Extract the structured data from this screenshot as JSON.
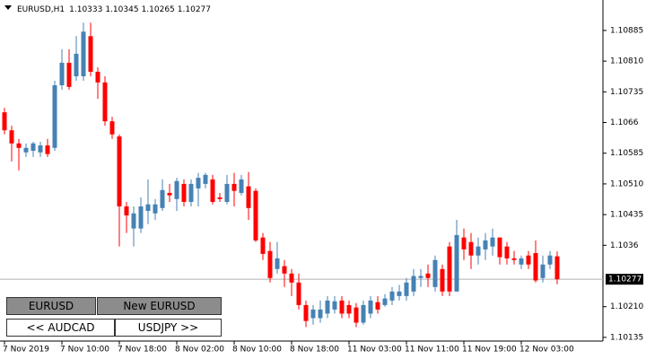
{
  "chart_data": {
    "type": "candlestick",
    "title": "EURUSD,H1",
    "categories": [
      "7 Nov 2019",
      null,
      null,
      null,
      null,
      null,
      null,
      null,
      "7 Nov 10:00",
      null,
      null,
      null,
      null,
      null,
      null,
      null,
      "7 Nov 18:00",
      null,
      null,
      null,
      null,
      null,
      null,
      null,
      "8 Nov 02:00",
      null,
      null,
      null,
      null,
      null,
      null,
      null,
      "8 Nov 10:00",
      null,
      null,
      null,
      null,
      null,
      null,
      null,
      "8 Nov 18:00",
      null,
      null,
      null,
      null,
      null,
      null,
      null,
      "11 Nov 03:00",
      null,
      null,
      null,
      null,
      null,
      null,
      null,
      "11 Nov 11:00",
      null,
      null,
      null,
      null,
      null,
      null,
      null,
      "11 Nov 19:00",
      null,
      null,
      null,
      null,
      null,
      null,
      null,
      "12 Nov 03:00",
      null,
      null,
      null,
      null,
      null
    ],
    "open": [
      1.10685,
      1.10641,
      1.10609,
      1.10587,
      1.10591,
      1.10587,
      1.10604,
      1.10598,
      1.10751,
      1.10806,
      1.10773,
      1.10773,
      1.10871,
      1.10784,
      1.10758,
      1.10663,
      1.10626,
      1.10455,
      1.10401,
      1.10401,
      1.10444,
      1.10438,
      1.10451,
      1.10488,
      1.10473,
      1.1051,
      1.10466,
      1.10499,
      1.1051,
      1.10521,
      1.10477,
      1.10466,
      1.1051,
      1.10488,
      1.10504,
      1.10493,
      1.10379,
      1.10346,
      1.10302,
      1.10309,
      1.10291,
      1.10269,
      1.10214,
      1.10182,
      1.10182,
      1.10193,
      1.10203,
      1.10225,
      1.10214,
      1.10208,
      1.10171,
      1.10193,
      1.10221,
      1.10214,
      1.10225,
      1.10236,
      1.10236,
      1.10247,
      1.1028,
      1.10291,
      1.10258,
      1.10302,
      1.10357,
      1.10247,
      1.10379,
      1.10368,
      1.10335,
      1.1035,
      1.10357,
      1.10379,
      1.10357,
      1.10328,
      1.10313,
      1.10335,
      1.10341,
      1.1028,
      1.10313,
      1.10333
    ],
    "high": [
      1.10696,
      1.10652,
      1.1062,
      1.10609,
      1.10613,
      1.10613,
      1.1062,
      1.10762,
      1.10839,
      1.10839,
      1.10871,
      1.10904,
      1.10904,
      1.10795,
      1.10773,
      1.10674,
      1.10631,
      1.10466,
      1.10455,
      1.10477,
      1.10521,
      1.10473,
      1.10521,
      1.1051,
      1.10525,
      1.10521,
      1.10521,
      1.10537,
      1.10537,
      1.10532,
      1.10488,
      1.10532,
      1.10537,
      1.10532,
      1.10539,
      1.10499,
      1.1039,
      1.10368,
      1.10368,
      1.10324,
      1.10302,
      1.10291,
      1.10225,
      1.10214,
      1.10225,
      1.10236,
      1.10236,
      1.10236,
      1.10225,
      1.10219,
      1.10225,
      1.10236,
      1.10236,
      1.10241,
      1.10258,
      1.10263,
      1.1028,
      1.10302,
      1.10302,
      1.10313,
      1.10335,
      1.10313,
      1.10368,
      1.10422,
      1.10401,
      1.1039,
      1.10379,
      1.1039,
      1.10401,
      1.10379,
      1.10368,
      1.10346,
      1.10335,
      1.10346,
      1.10372,
      1.10335,
      1.10346,
      1.10345
    ],
    "low": [
      1.10631,
      1.10565,
      1.10543,
      1.10576,
      1.10576,
      1.10576,
      1.10576,
      1.10591,
      1.1074,
      1.1074,
      1.10762,
      1.10762,
      1.10773,
      1.10718,
      1.10652,
      1.1062,
      1.10357,
      1.1039,
      1.10357,
      1.1039,
      1.10412,
      1.10422,
      1.10444,
      1.10466,
      1.10444,
      1.10455,
      1.10455,
      1.10455,
      1.10499,
      1.1046,
      1.10466,
      1.1046,
      1.10455,
      1.10482,
      1.10422,
      1.10368,
      1.10324,
      1.10269,
      1.10291,
      1.10258,
      1.10236,
      1.10203,
      1.1016,
      1.10166,
      1.10171,
      1.10182,
      1.10193,
      1.10182,
      1.10182,
      1.1016,
      1.10166,
      1.10182,
      1.10193,
      1.1021,
      1.10214,
      1.10225,
      1.10225,
      1.10236,
      1.10258,
      1.10258,
      1.10247,
      1.10236,
      1.10236,
      1.10247,
      1.10324,
      1.10302,
      1.10313,
      1.10324,
      1.10335,
      1.10313,
      1.10313,
      1.10313,
      1.10302,
      1.10302,
      1.10269,
      1.10269,
      1.10302,
      1.10265
    ],
    "close": [
      1.10641,
      1.10609,
      1.10598,
      1.10598,
      1.10609,
      1.10604,
      1.10583,
      1.10751,
      1.10806,
      1.10747,
      1.10828,
      1.10882,
      1.10784,
      1.10758,
      1.10663,
      1.10631,
      1.10455,
      1.10433,
      1.10438,
      1.10455,
      1.1046,
      1.1046,
      1.10495,
      1.10482,
      1.10517,
      1.10466,
      1.1051,
      1.10525,
      1.10532,
      1.10466,
      1.10473,
      1.1051,
      1.10493,
      1.10521,
      1.10451,
      1.10372,
      1.10339,
      1.1028,
      1.10328,
      1.10291,
      1.10269,
      1.10214,
      1.10175,
      1.10203,
      1.10203,
      1.10225,
      1.10223,
      1.10193,
      1.10193,
      1.10171,
      1.10214,
      1.10225,
      1.10203,
      1.1023,
      1.10247,
      1.10247,
      1.10269,
      1.10285,
      1.10285,
      1.1028,
      1.10324,
      1.10247,
      1.10247,
      1.10385,
      1.1035,
      1.10335,
      1.10357,
      1.10372,
      1.10379,
      1.10331,
      1.10328,
      1.10324,
      1.10328,
      1.10313,
      1.10274,
      1.10313,
      1.10335,
      1.10277
    ],
    "up_color": "#4682b4",
    "down_color": "#ff0000",
    "ylim": [
      1.10126,
      1.10955
    ],
    "yticks": [
      1.10135,
      {
        "value": 1.1021,
        "label": "1.10210"
      },
      1.1036,
      1.10435,
      {
        "value": 1.1051,
        "label": "1.10510"
      },
      1.10585,
      1.1066,
      1.10735,
      {
        "value": 1.1081,
        "label": "1.10810"
      },
      1.10885
    ],
    "grid": false
  },
  "buttons": [
    "EURUSD",
    "New EURUSD",
    "<< AUDCAD",
    "USDJPY >>"
  ]
}
